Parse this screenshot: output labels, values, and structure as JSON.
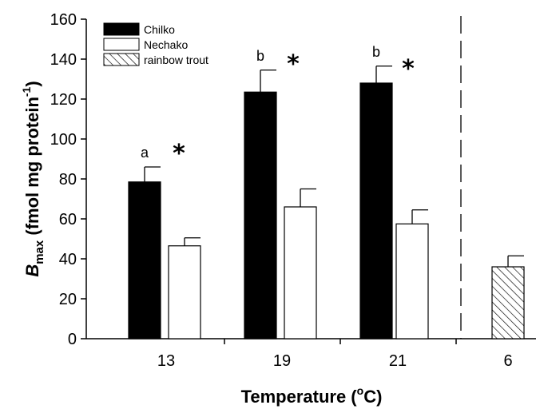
{
  "chart_data": {
    "type": "bar",
    "categories": [
      "13",
      "19",
      "21",
      "6"
    ],
    "series": [
      {
        "name": "Chilko",
        "fill": "#000000",
        "values": [
          78.5,
          123.5,
          128,
          null
        ],
        "errors": [
          7.5,
          11,
          8.5,
          null
        ]
      },
      {
        "name": "Nechako",
        "fill": "#ffffff",
        "values": [
          46.5,
          66,
          57.5,
          null
        ],
        "errors": [
          4,
          9,
          7,
          null
        ]
      },
      {
        "name": "rainbow trout",
        "fill": "hatch",
        "values": [
          null,
          null,
          null,
          36
        ],
        "errors": [
          null,
          null,
          null,
          5.5
        ]
      }
    ],
    "xlabel": {
      "main": "Temperature (",
      "sup": "o",
      "rest": "C)"
    },
    "ylabel": {
      "main": "B",
      "sub": "max",
      "rest": " (fmol mg protein",
      "sup": "-1",
      "close": ")"
    },
    "ylim": [
      0,
      160
    ],
    "yticks": [
      "0",
      "20",
      "40",
      "60",
      "80",
      "100",
      "120",
      "140",
      "160"
    ],
    "letters": [
      "a",
      "b",
      "b"
    ],
    "significance": [
      "*",
      "*",
      "*"
    ],
    "legend_position": "top-left",
    "divider": "dashed vertical line before 6",
    "grid": false
  }
}
